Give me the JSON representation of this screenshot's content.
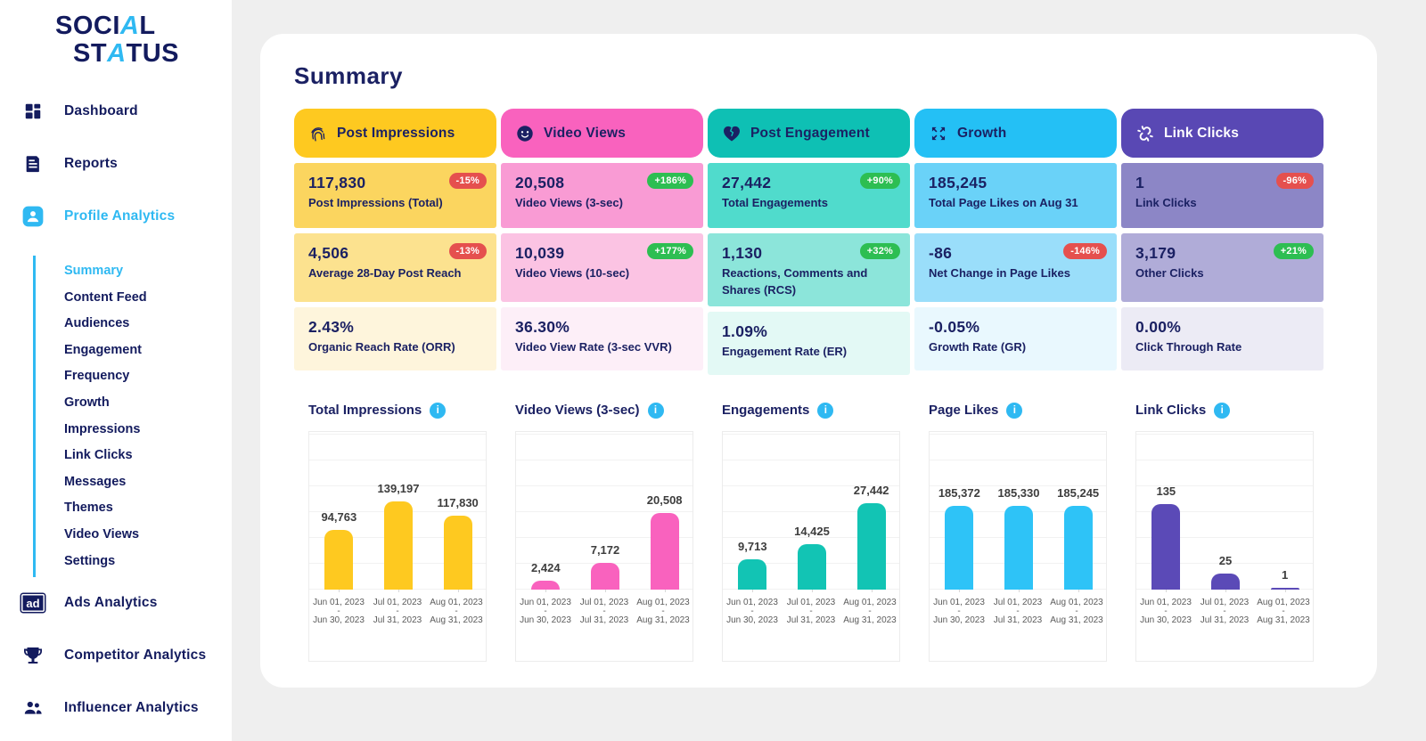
{
  "logo": {
    "word1_pre": "SOCI",
    "word1_a": "A",
    "word1_post": "L",
    "word2_pre": "ST",
    "word2_a": "A",
    "word2_post": "TUS"
  },
  "colors": {
    "accent_blue": "#2FB9F2",
    "navy": "#131B5E",
    "badge_red": "#E5504E",
    "badge_green": "#2DBE52",
    "background": "#EFEFEF"
  },
  "sidebar": {
    "ad_icon_text": "ad",
    "items_top": [
      {
        "id": "dashboard",
        "label": "Dashboard",
        "icon": "dashboard-grid-icon",
        "active": false
      },
      {
        "id": "reports",
        "label": "Reports",
        "icon": "reports-document-icon",
        "active": false
      },
      {
        "id": "profile-analytics",
        "label": "Profile Analytics",
        "icon": "profile-user-icon",
        "active": true
      }
    ],
    "submenu": [
      {
        "id": "summary",
        "label": "Summary",
        "active": true
      },
      {
        "id": "content-feed",
        "label": "Content Feed",
        "active": false
      },
      {
        "id": "audiences",
        "label": "Audiences",
        "active": false
      },
      {
        "id": "engagement",
        "label": "Engagement",
        "active": false
      },
      {
        "id": "frequency",
        "label": "Frequency",
        "active": false
      },
      {
        "id": "growth",
        "label": "Growth",
        "active": false
      },
      {
        "id": "impressions",
        "label": "Impressions",
        "active": false
      },
      {
        "id": "link-clicks",
        "label": "Link Clicks",
        "active": false
      },
      {
        "id": "messages",
        "label": "Messages",
        "active": false
      },
      {
        "id": "themes",
        "label": "Themes",
        "active": false
      },
      {
        "id": "video-views",
        "label": "Video Views",
        "active": false
      },
      {
        "id": "settings",
        "label": "Settings",
        "active": false
      }
    ],
    "items_bottom": [
      {
        "id": "ads-analytics",
        "label": "Ads Analytics",
        "icon": "ad-icon",
        "active": false
      },
      {
        "id": "competitor-analytics",
        "label": "Competitor Analytics",
        "icon": "trophy-icon",
        "active": false
      },
      {
        "id": "influencer-analytics",
        "label": "Influencer Analytics",
        "icon": "people-icon",
        "active": false
      }
    ]
  },
  "main": {
    "title": "Summary"
  },
  "cards": [
    {
      "id": "post-impressions",
      "title": "Post Impressions",
      "icon": "fingerprint-icon",
      "colors": {
        "header": "#FEC920",
        "row1": "#FBD55F",
        "row2": "#FCE28F",
        "row3": "#FEF5DC",
        "header_text": "#1B2163"
      },
      "rows": [
        {
          "value": "117,830",
          "label": "Post Impressions (Total)",
          "badge": "-15%",
          "badge_color": "#E5504E"
        },
        {
          "value": "4,506",
          "label": "Average 28-Day Post Reach",
          "badge": "-13%",
          "badge_color": "#E5504E"
        },
        {
          "value": "2.43%",
          "label": "Organic Reach Rate (ORR)"
        }
      ]
    },
    {
      "id": "video-views",
      "title": "Video Views",
      "icon": "smiley-face-icon",
      "colors": {
        "header": "#F962BE",
        "row1": "#F99BD4",
        "row2": "#FBC3E3",
        "row3": "#FDEFF8",
        "header_text": "#1B2163"
      },
      "rows": [
        {
          "value": "20,508",
          "label": "Video Views (3-sec)",
          "badge": "+186%",
          "badge_color": "#2DBE52"
        },
        {
          "value": "10,039",
          "label": "Video Views (10-sec)",
          "badge": "+177%",
          "badge_color": "#2DBE52"
        },
        {
          "value": "36.30%",
          "label": "Video View Rate (3-sec VVR)"
        }
      ]
    },
    {
      "id": "post-engagement",
      "title": "Post Engagement",
      "icon": "broken-heart-icon",
      "colors": {
        "header": "#0EC0B4",
        "row1": "#50DBCC",
        "row2": "#8CE5DA",
        "row3": "#E3F9F5",
        "header_text": "#1B2163"
      },
      "rows": [
        {
          "value": "27,442",
          "label": "Total Engagements",
          "badge": "+90%",
          "badge_color": "#2DBE52"
        },
        {
          "value": "1,130",
          "label": "Reactions, Comments and Shares (RCS)",
          "badge": "+32%",
          "badge_color": "#2DBE52"
        },
        {
          "value": "1.09%",
          "label": "Engagement Rate (ER)"
        }
      ]
    },
    {
      "id": "growth",
      "title": "Growth",
      "icon": "expand-arrows-icon",
      "colors": {
        "header": "#24C0F5",
        "row1": "#6AD2F8",
        "row2": "#9ADEFA",
        "row3": "#E9F8FE",
        "header_text": "#1B2163"
      },
      "rows": [
        {
          "value": "185,245",
          "label": "Total Page Likes on Aug 31"
        },
        {
          "value": "-86",
          "label": "Net Change in Page Likes",
          "badge": "-146%",
          "badge_color": "#E5504E"
        },
        {
          "value": "-0.05%",
          "label": "Growth Rate (GR)"
        }
      ]
    },
    {
      "id": "link-clicks",
      "title": "Link Clicks",
      "icon": "broken-link-icon",
      "colors": {
        "header": "#5948B4",
        "row1": "#8C86C6",
        "row2": "#B0ACD8",
        "row3": "#ECEBF5",
        "header_text": "#FFFFFF"
      },
      "rows": [
        {
          "value": "1",
          "label": "Link Clicks",
          "badge": "-96%",
          "badge_color": "#E5504E"
        },
        {
          "value": "3,179",
          "label": "Other Clicks",
          "badge": "+21%",
          "badge_color": "#2DBE52"
        },
        {
          "value": "0.00%",
          "label": "Click Through Rate"
        }
      ]
    }
  ],
  "chart_data": [
    {
      "type": "bar",
      "title": "Total Impressions",
      "color": "#FEC920",
      "ymax": 250000,
      "grid": true,
      "separator": "-",
      "categories": [
        {
          "from": "Jun 01, 2023",
          "to": "Jun 30, 2023"
        },
        {
          "from": "Jul 01, 2023",
          "to": "Jul 31, 2023"
        },
        {
          "from": "Aug 01, 2023",
          "to": "Aug 31, 2023"
        }
      ],
      "values": [
        94763,
        139197,
        117830
      ],
      "value_labels": [
        "94,763",
        "139,197",
        "117,830"
      ]
    },
    {
      "type": "bar",
      "title": "Video Views (3-sec)",
      "color": "#F962BE",
      "ymax": 42000,
      "grid": true,
      "separator": "-",
      "categories": [
        {
          "from": "Jun 01, 2023",
          "to": "Jun 30, 2023"
        },
        {
          "from": "Jul 01, 2023",
          "to": "Jul 31, 2023"
        },
        {
          "from": "Aug 01, 2023",
          "to": "Aug 31, 2023"
        }
      ],
      "values": [
        2424,
        7172,
        20508
      ],
      "value_labels": [
        "2,424",
        "7,172",
        "20,508"
      ]
    },
    {
      "type": "bar",
      "title": "Engagements",
      "color": "#12C4B4",
      "ymax": 50000,
      "grid": true,
      "separator": "-",
      "categories": [
        {
          "from": "Jun 01, 2023",
          "to": "Jun 30, 2023"
        },
        {
          "from": "Jul 01, 2023",
          "to": "Jul 31, 2023"
        },
        {
          "from": "Aug 01, 2023",
          "to": "Aug 31, 2023"
        }
      ],
      "values": [
        9713,
        14425,
        27442
      ],
      "value_labels": [
        "9,713",
        "14,425",
        "27,442"
      ]
    },
    {
      "type": "bar",
      "title": "Page Likes",
      "color": "#2EC3F7",
      "ymax": 350000,
      "grid": true,
      "separator": "-",
      "categories": [
        {
          "from": "Jun 01, 2023",
          "to": "Jun 30, 2023"
        },
        {
          "from": "Jul 01, 2023",
          "to": "Jul 31, 2023"
        },
        {
          "from": "Aug 01, 2023",
          "to": "Aug 31, 2023"
        }
      ],
      "values": [
        185372,
        185330,
        185245
      ],
      "value_labels": [
        "185,372",
        "185,330",
        "185,245"
      ]
    },
    {
      "type": "bar",
      "title": "Link Clicks",
      "color": "#5B4AB7",
      "ymax": 250,
      "grid": true,
      "separator": "-",
      "categories": [
        {
          "from": "Jun 01, 2023",
          "to": "Jun 30, 2023"
        },
        {
          "from": "Jul 01, 2023",
          "to": "Jul 31, 2023"
        },
        {
          "from": "Aug 01, 2023",
          "to": "Aug 31, 2023"
        }
      ],
      "values": [
        135,
        25,
        1
      ],
      "value_labels": [
        "135",
        "25",
        "1"
      ]
    }
  ]
}
